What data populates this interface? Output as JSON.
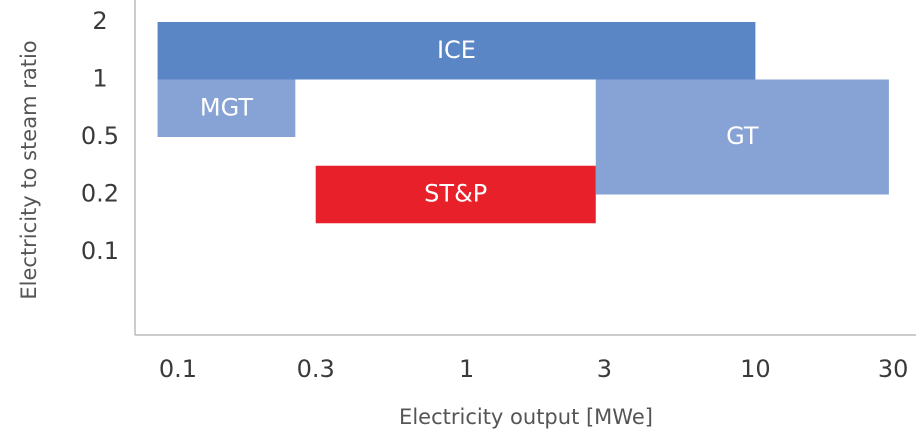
{
  "chart_data": {
    "type": "range",
    "x_label": "Electricity output [MWe]",
    "y_label": "Electricity to steam ratio",
    "xscale": "log",
    "xlim": [
      0.071,
      36
    ],
    "xticks": [
      0.1,
      0.3,
      1,
      3,
      10,
      30
    ],
    "yscale": "ordinal",
    "yticks": [
      2,
      1,
      0.5,
      0.2,
      0.1
    ],
    "series": [
      {
        "name": "ICE",
        "color": "#5b86c6",
        "x": [
          0.085,
          10
        ],
        "y": [
          1,
          2
        ]
      },
      {
        "name": "MGT",
        "color": "#87a2d5",
        "x": [
          0.085,
          0.255
        ],
        "y": [
          0.5,
          1
        ]
      },
      {
        "name": "GT",
        "color": "#87a2d5",
        "x": [
          2.8,
          29
        ],
        "y": [
          0.2,
          1
        ]
      },
      {
        "name": "ST&P",
        "color": "#e8202a",
        "x": [
          0.3,
          2.8
        ],
        "y": [
          0.15,
          0.35
        ]
      }
    ]
  }
}
